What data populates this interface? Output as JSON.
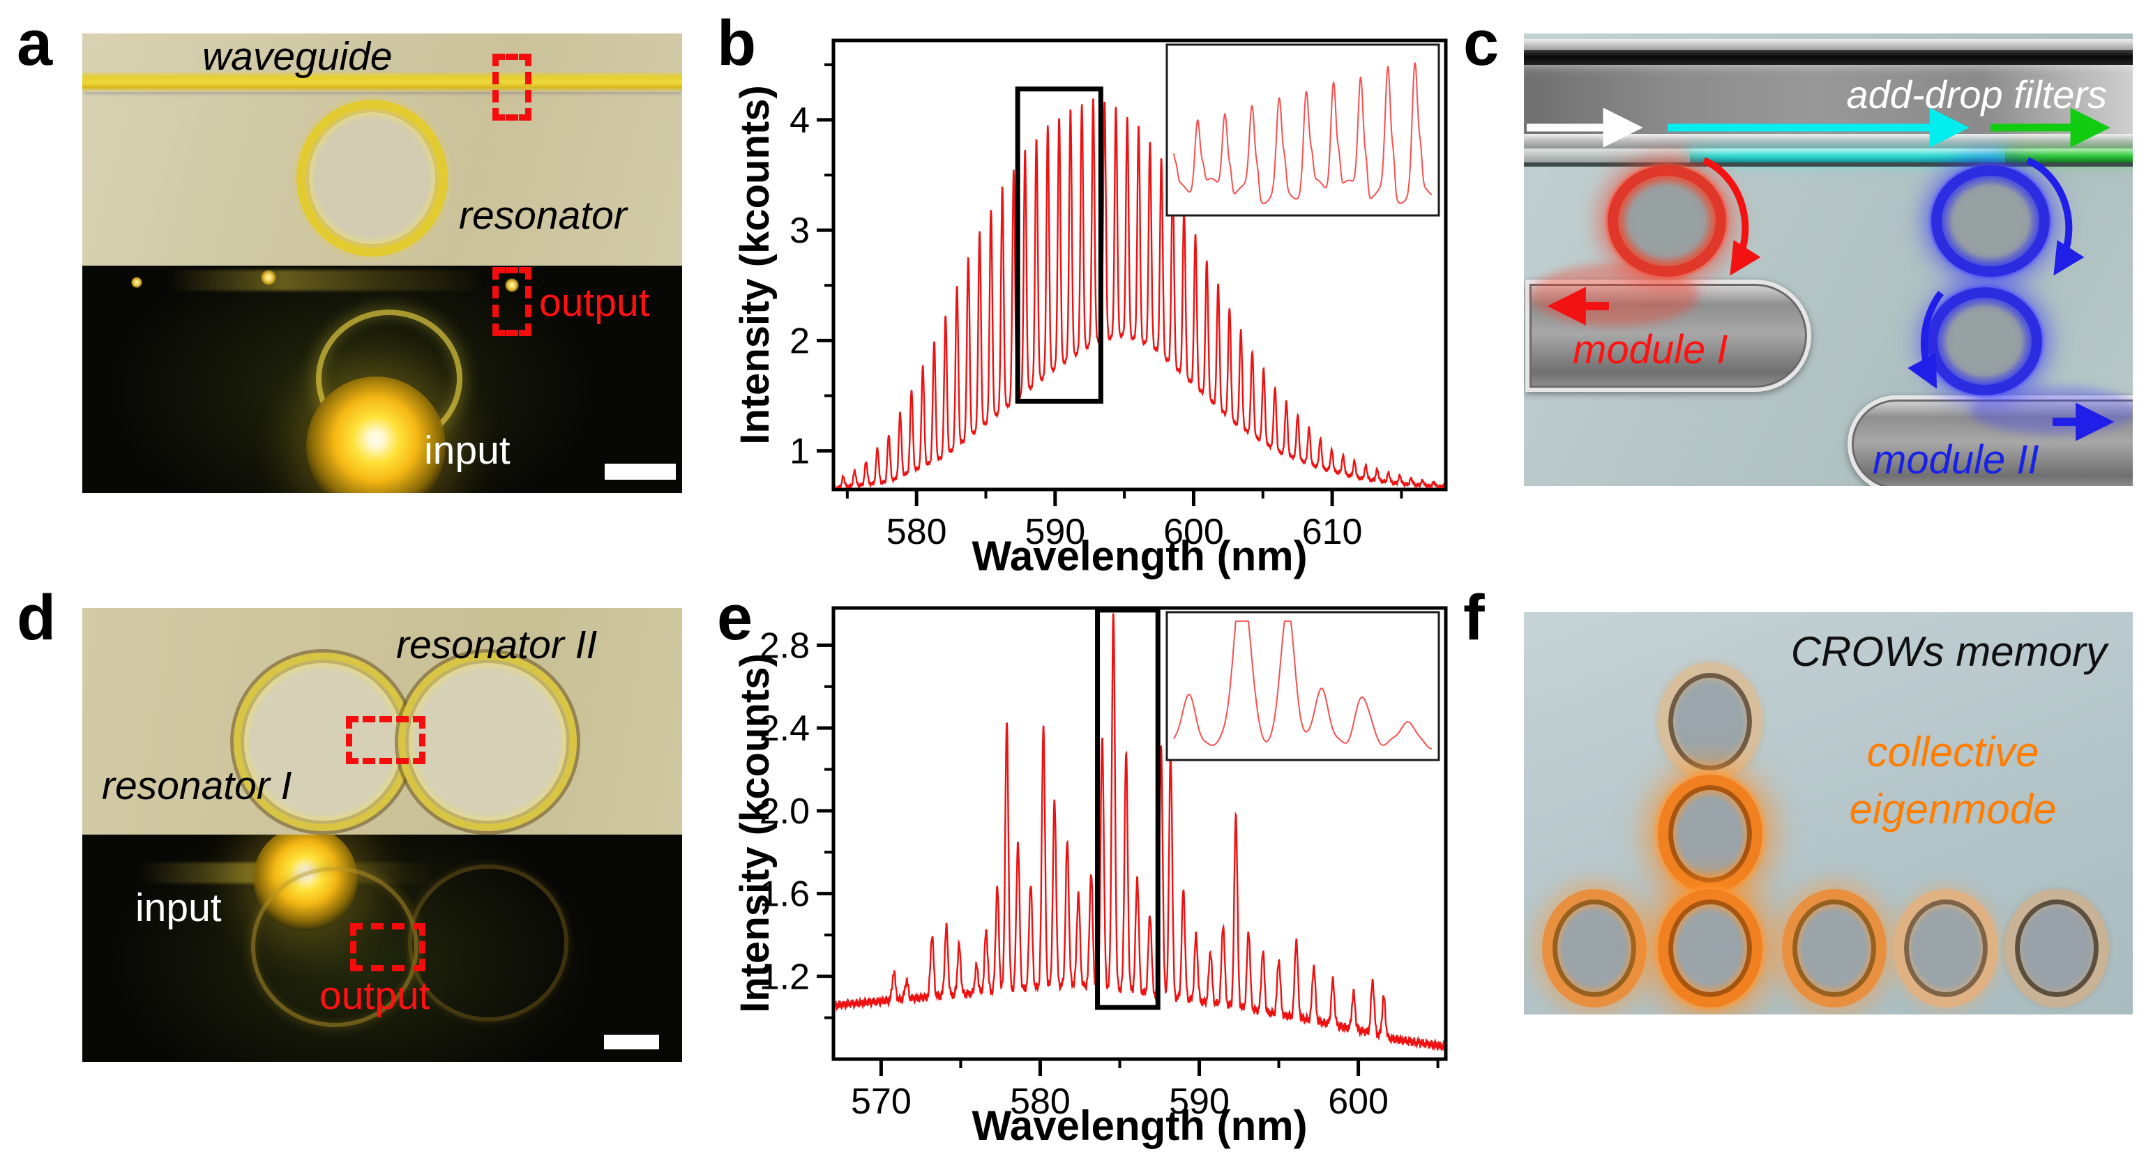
{
  "figure": {
    "background": "#ffffff"
  },
  "panels": {
    "a": {
      "letter": "a",
      "labels": {
        "waveguide": "waveguide",
        "resonator": "resonator",
        "output": "output",
        "input": "input"
      }
    },
    "b": {
      "letter": "b"
    },
    "c": {
      "letter": "c",
      "title": "add-drop filters",
      "module_i": "module I",
      "module_ii": "module II"
    },
    "d": {
      "letter": "d",
      "labels": {
        "resonator_ii": "resonator II",
        "resonator_i": "resonator I",
        "input": "input",
        "output": "output"
      }
    },
    "e": {
      "letter": "e"
    },
    "f": {
      "letter": "f",
      "title": "CROWs memory",
      "annotation_line1": "collective",
      "annotation_line2": "eigenmode"
    }
  },
  "colors": {
    "spectrum_red": "#ee1111",
    "highlight_black": "#000000",
    "module1_red": "#ff1111",
    "module2_blue": "#1822e6",
    "flow_white": "#ffffff",
    "flow_cyan": "#00eeee",
    "flow_green": "#12cc12",
    "crow_orange": "#ff7d00"
  },
  "chart_data": [
    {
      "id": "b",
      "type": "line",
      "title": "",
      "xlabel": "Wavelength (nm)",
      "ylabel": "Intensity (kcounts)",
      "xlim": [
        574.0,
        618.2
      ],
      "ylim": [
        0.65,
        4.72
      ],
      "x_major_ticks": [
        580,
        590,
        600,
        610
      ],
      "x_minor_ticks": [
        575,
        585,
        595,
        605,
        615
      ],
      "y_major_ticks": [
        1,
        2,
        3,
        4
      ],
      "y_minor_ticks": [
        1.5,
        2.5,
        3.5,
        4.5
      ],
      "y_tick_decimals": 0,
      "grid": false,
      "legend": "none",
      "line_color": "#ee1111",
      "description": "Whispering-gallery-mode lasing comb: narrow periodic peaks under a smooth envelope",
      "synthesis": {
        "mode": "comb",
        "fsr_nm": 0.82,
        "comb_width_phase": 0.115,
        "phase_ref": 574.3,
        "noise_amp": 0.018,
        "peak_envelope": [
          [
            574.0,
            0.72
          ],
          [
            576,
            0.85
          ],
          [
            578,
            1.15
          ],
          [
            580,
            1.65
          ],
          [
            582,
            2.2
          ],
          [
            584,
            2.85
          ],
          [
            586,
            3.35
          ],
          [
            588,
            3.75
          ],
          [
            590,
            4.0
          ],
          [
            592,
            4.15
          ],
          [
            593,
            4.2
          ],
          [
            594,
            4.15
          ],
          [
            596,
            3.95
          ],
          [
            598,
            3.6
          ],
          [
            600,
            3.0
          ],
          [
            602,
            2.45
          ],
          [
            604,
            1.95
          ],
          [
            606,
            1.55
          ],
          [
            608,
            1.25
          ],
          [
            610,
            1.0
          ],
          [
            612,
            0.88
          ],
          [
            614,
            0.8
          ],
          [
            616,
            0.74
          ],
          [
            618.2,
            0.7
          ]
        ],
        "valley_envelope": [
          [
            574.0,
            0.66
          ],
          [
            578,
            0.72
          ],
          [
            582,
            0.95
          ],
          [
            586,
            1.35
          ],
          [
            590,
            1.75
          ],
          [
            593,
            2.0
          ],
          [
            595,
            2.05
          ],
          [
            597,
            1.95
          ],
          [
            600,
            1.6
          ],
          [
            603,
            1.25
          ],
          [
            606,
            1.0
          ],
          [
            609,
            0.85
          ],
          [
            612,
            0.75
          ],
          [
            615,
            0.7
          ],
          [
            618.2,
            0.67
          ]
        ]
      },
      "highlight_box": {
        "x0": 587.3,
        "x1": 593.3,
        "y0": 1.45,
        "y1": 4.28
      },
      "inset": {
        "caption": "zoom of boxed region showing resolved comb peaks",
        "synthesis": {
          "mode": "comb_ramp",
          "n_peaks": 9.5,
          "start_height": 0.52,
          "end_height": 0.97,
          "valley_level": 0.12,
          "peak_width_phase": 0.1
        }
      }
    },
    {
      "id": "e",
      "type": "line",
      "title": "",
      "xlabel": "Wavelength (nm)",
      "ylabel": "Intensity (kcounts)",
      "xlim": [
        567.0,
        605.5
      ],
      "ylim": [
        0.8,
        2.98
      ],
      "x_major_ticks": [
        570,
        580,
        590,
        600
      ],
      "x_minor_ticks": [
        575,
        585,
        595,
        605
      ],
      "y_major_ticks": [
        1.2,
        1.6,
        2.0,
        2.4,
        2.8
      ],
      "y_minor_ticks": [
        1.0,
        1.4,
        1.8,
        2.2,
        2.6
      ],
      "y_tick_decimals": 1,
      "grid": false,
      "legend": "none",
      "line_color": "#ee1111",
      "description": "Coupled-resonator collective eigenmode spectrum: irregular sharp lines over a broad hump",
      "synthesis": {
        "mode": "peaks",
        "sigma_nm": 0.1,
        "noise_amp": 0.022,
        "base_envelope": [
          [
            567.0,
            1.06
          ],
          [
            570,
            1.08
          ],
          [
            573,
            1.1
          ],
          [
            576,
            1.12
          ],
          [
            579,
            1.14
          ],
          [
            582,
            1.16
          ],
          [
            585,
            1.14
          ],
          [
            588,
            1.1
          ],
          [
            591,
            1.07
          ],
          [
            594,
            1.03
          ],
          [
            597,
            0.99
          ],
          [
            600,
            0.94
          ],
          [
            602,
            0.9
          ],
          [
            605.5,
            0.86
          ]
        ],
        "peaks": [
          [
            570.8,
            1.22
          ],
          [
            571.6,
            1.18
          ],
          [
            573.2,
            1.4
          ],
          [
            574.1,
            1.44
          ],
          [
            574.9,
            1.35
          ],
          [
            576.0,
            1.25
          ],
          [
            576.6,
            1.42
          ],
          [
            577.3,
            1.63
          ],
          [
            577.9,
            2.42
          ],
          [
            578.6,
            1.85
          ],
          [
            579.4,
            1.65
          ],
          [
            580.2,
            2.41
          ],
          [
            580.9,
            2.05
          ],
          [
            581.7,
            1.85
          ],
          [
            582.4,
            1.6
          ],
          [
            583.2,
            1.7
          ],
          [
            583.9,
            2.35
          ],
          [
            584.6,
            2.95
          ],
          [
            585.4,
            2.28
          ],
          [
            586.1,
            1.68
          ],
          [
            586.9,
            1.5
          ],
          [
            587.6,
            2.3
          ],
          [
            588.2,
            2.27
          ],
          [
            589.0,
            1.62
          ],
          [
            589.8,
            1.4
          ],
          [
            590.7,
            1.32
          ],
          [
            591.5,
            1.45
          ],
          [
            592.3,
            1.98
          ],
          [
            593.1,
            1.42
          ],
          [
            594.0,
            1.32
          ],
          [
            595.0,
            1.28
          ],
          [
            596.1,
            1.38
          ],
          [
            597.2,
            1.25
          ],
          [
            598.4,
            1.18
          ],
          [
            599.7,
            1.12
          ],
          [
            600.9,
            1.18
          ],
          [
            601.6,
            1.1
          ]
        ]
      },
      "highlight_box": {
        "x0": 583.6,
        "x1": 587.4,
        "y0": 1.05,
        "y1": 2.97
      },
      "inset": {
        "caption": "zoom of boxed region showing split eigenmode lines",
        "synthesis": {
          "mode": "peaks_rel",
          "base": 0.07,
          "sigma": 0.028,
          "peaks": [
            [
              0.06,
              0.35
            ],
            [
              0.25,
              0.72
            ],
            [
              0.28,
              0.7
            ],
            [
              0.44,
              1.0
            ],
            [
              0.57,
              0.42
            ],
            [
              0.73,
              0.36
            ],
            [
              0.87,
              0.08
            ],
            [
              0.92,
              0.12
            ]
          ]
        }
      }
    }
  ]
}
